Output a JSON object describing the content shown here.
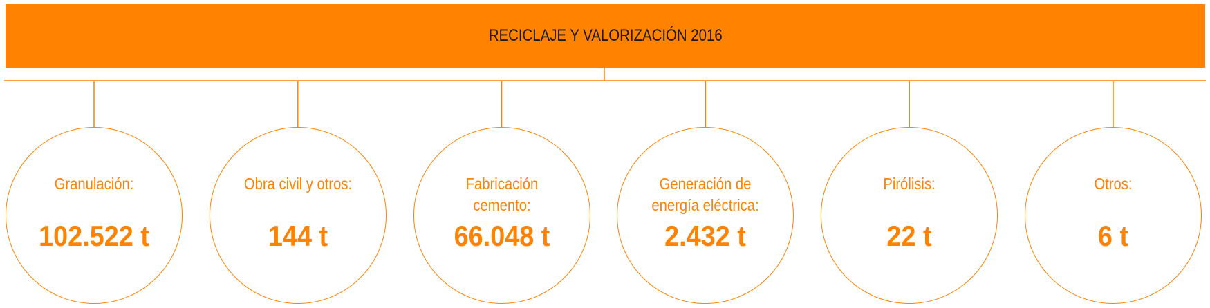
{
  "header": {
    "title": "RECICLAJE Y VALORIZACIÓN 2016"
  },
  "nodes": [
    {
      "label": "Granulación:",
      "value": "102.522 t"
    },
    {
      "label": "Obra civil y otros:",
      "value": "144 t"
    },
    {
      "label": "Fabricación cemento:",
      "value": "66.048 t"
    },
    {
      "label": "Generación de energía eléctrica:",
      "value": "2.432 t"
    },
    {
      "label": "Pirólisis:",
      "value": "22 t"
    },
    {
      "label": "Otros:",
      "value": "6 t"
    }
  ]
}
